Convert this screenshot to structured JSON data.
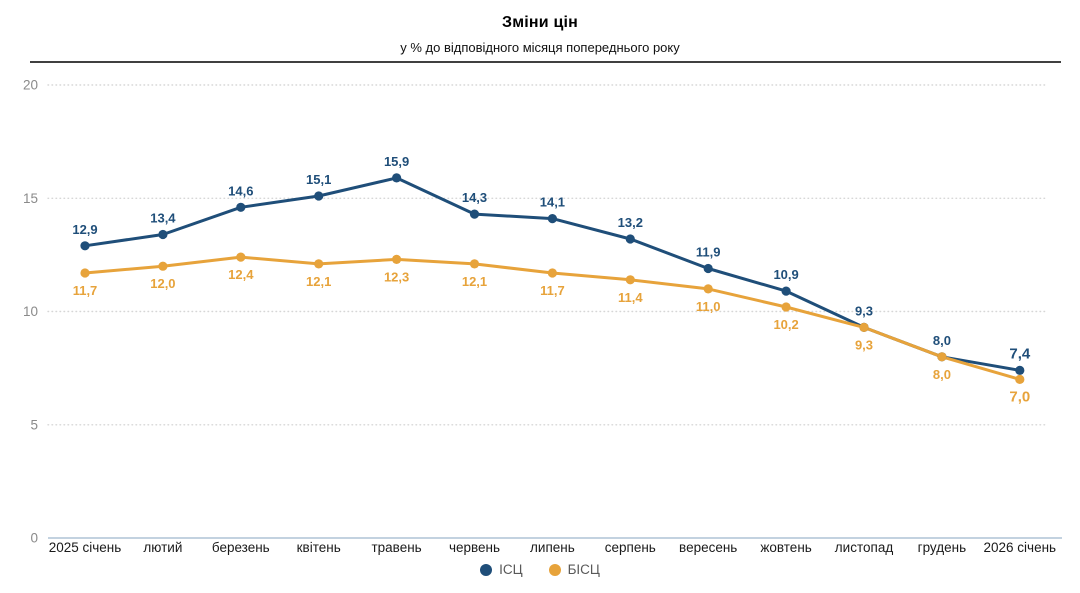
{
  "header": {
    "title": "Зміни цін",
    "subtitle": "у % до відповідного місяця попереднього року"
  },
  "chart_data": {
    "type": "line",
    "title": "Зміни цін",
    "subtitle": "у % до відповідного місяця попереднього року",
    "categories": [
      "2025 січень",
      "лютий",
      "березень",
      "квітень",
      "травень",
      "червень",
      "липень",
      "серпень",
      "вересень",
      "жовтень",
      "листопад",
      "грудень",
      "2026 січень"
    ],
    "series": [
      {
        "name": "ІСЦ",
        "color": "#1F4E79",
        "values": [
          12.9,
          13.4,
          14.6,
          15.1,
          15.9,
          14.3,
          14.1,
          13.2,
          11.9,
          10.9,
          9.3,
          8.0,
          7.4
        ],
        "labels": [
          "12,9",
          "13,4",
          "14,6",
          "15,1",
          "15,9",
          "14,3",
          "14,1",
          "13,2",
          "11,9",
          "10,9",
          "9,3",
          "8,0",
          "7,4"
        ],
        "label_position": "above"
      },
      {
        "name": "БІСЦ",
        "color": "#E7A33B",
        "values": [
          11.7,
          12.0,
          12.4,
          12.1,
          12.3,
          12.1,
          11.7,
          11.4,
          11.0,
          10.2,
          9.3,
          8.0,
          7.0
        ],
        "labels": [
          "11,7",
          "12,0",
          "12,4",
          "12,1",
          "12,3",
          "12,1",
          "11,7",
          "11,4",
          "11,0",
          "10,2",
          "9,3",
          "8,0",
          "7,0"
        ],
        "label_position": "below"
      }
    ],
    "ylim": [
      0,
      20
    ],
    "yticks": [
      0,
      5,
      10,
      15,
      20
    ],
    "grid": "horizontal-dotted",
    "legend_position": "bottom-center",
    "decimal_separator": ","
  },
  "colors": {
    "icp_line": "#1F4E79",
    "core_icp_line": "#E7A33B",
    "grid_dotted": "#d6d6d6",
    "zero_axis": "#c3d2e0",
    "y_tick_text": "#8a8a8a",
    "x_tick_text": "#1a1a1a",
    "legend_text": "#595959",
    "header_rule": "#404040"
  }
}
